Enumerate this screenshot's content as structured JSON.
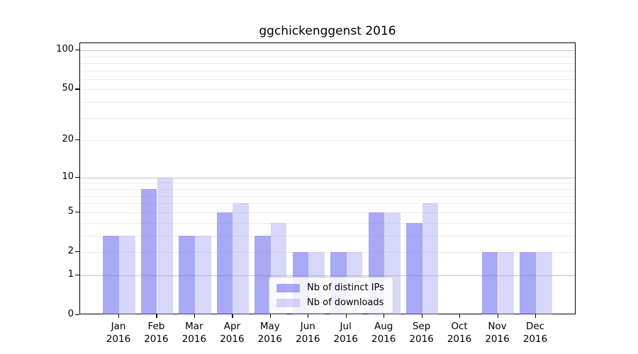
{
  "title": "ggchickenggenst 2016",
  "chart_data": {
    "type": "bar",
    "title": "ggchickenggenst 2016",
    "categories": [
      "Jan",
      "Feb",
      "Mar",
      "Apr",
      "May",
      "Jun",
      "Jul",
      "Aug",
      "Sep",
      "Oct",
      "Nov",
      "Dec"
    ],
    "category_year": "2016",
    "series": [
      {
        "name": "Nb of distinct IPs",
        "color": "#6666ee",
        "fill_opacity": 0.56,
        "rendered_color": "#a9a9f5",
        "values": [
          3,
          8,
          3,
          5,
          3,
          2,
          2,
          5,
          4,
          0,
          2,
          2
        ]
      },
      {
        "name": "Nb of downloads",
        "color": "#a0a0f0",
        "fill_opacity": 0.42,
        "rendered_color": "#d8d8f8",
        "values": [
          3,
          10,
          3,
          6,
          4,
          2,
          2,
          5,
          6,
          0,
          2,
          2
        ]
      }
    ],
    "xlabel": "",
    "ylabel": "",
    "y_axis": {
      "scale": "log10(1+x)",
      "ticks": [
        0,
        1,
        2,
        5,
        10,
        20,
        50,
        100
      ],
      "major_gridlines": [
        1,
        10,
        100
      ],
      "minor_gridlines": [
        2,
        3,
        4,
        5,
        6,
        7,
        8,
        9,
        20,
        30,
        40,
        50,
        60,
        70,
        80,
        90
      ],
      "ylim": [
        0,
        113
      ]
    },
    "grid": true,
    "legend": {
      "position": "lower-center-inside",
      "entries": [
        "Nb of distinct IPs",
        "Nb of downloads"
      ]
    },
    "colors": {
      "major_gridline": "#c4c4c4",
      "minor_gridline": "#ececec",
      "axis_spine": "#000000",
      "background": "#ffffff"
    }
  }
}
